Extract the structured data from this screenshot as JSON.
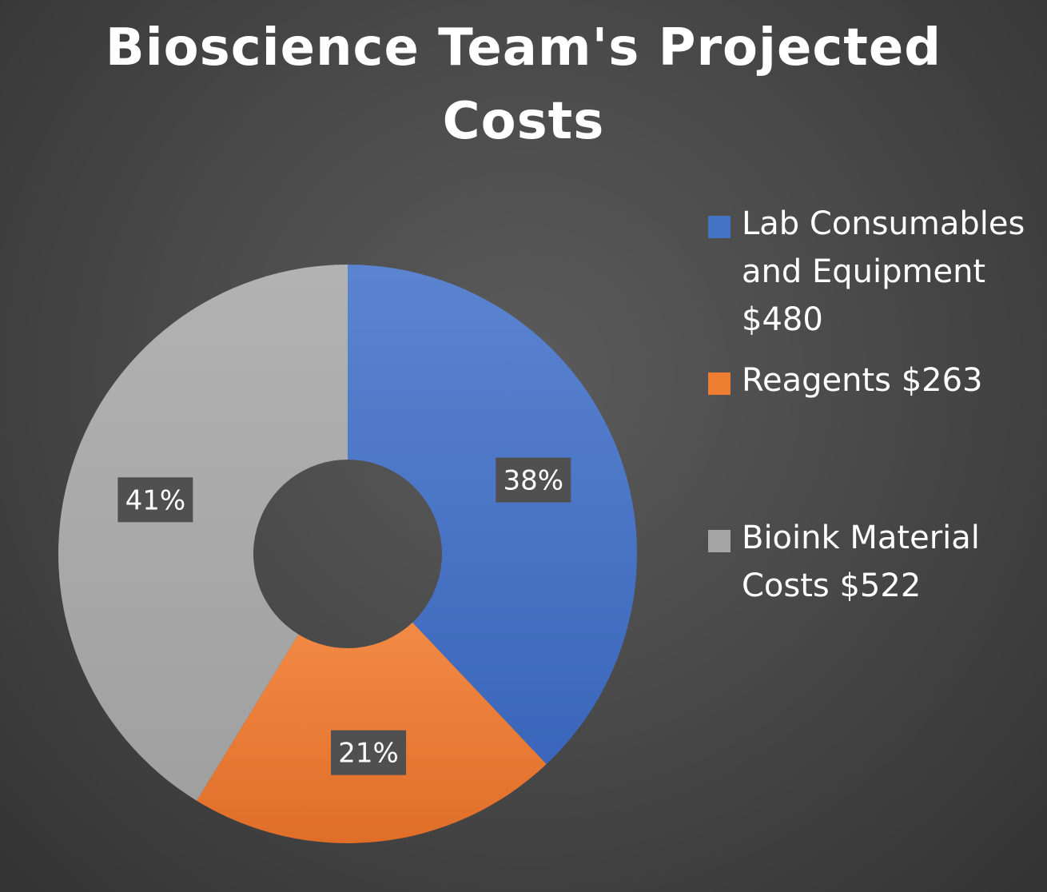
{
  "chart_data": {
    "type": "pie",
    "donut": true,
    "title": "Bioscience Team's Projected Costs",
    "title_lines": [
      "Bioscience Team's Projected",
      "Costs"
    ],
    "legend_position": "right",
    "categories": [
      "Lab Consumables and Equipment $480",
      "Reagents $263",
      "Bioink Material Costs $522"
    ],
    "legend_lines": [
      [
        "Lab Consumables",
        "and Equipment",
        "$480"
      ],
      [
        "Reagents $263"
      ],
      [
        "Bioink Material",
        "Costs $522"
      ]
    ],
    "values": [
      480,
      263,
      522
    ],
    "data_labels": [
      "38%",
      "21%",
      "41%"
    ],
    "colors": [
      "#4472c4",
      "#ed7d31",
      "#a5a5a5"
    ]
  },
  "background": "#4a4a4a"
}
